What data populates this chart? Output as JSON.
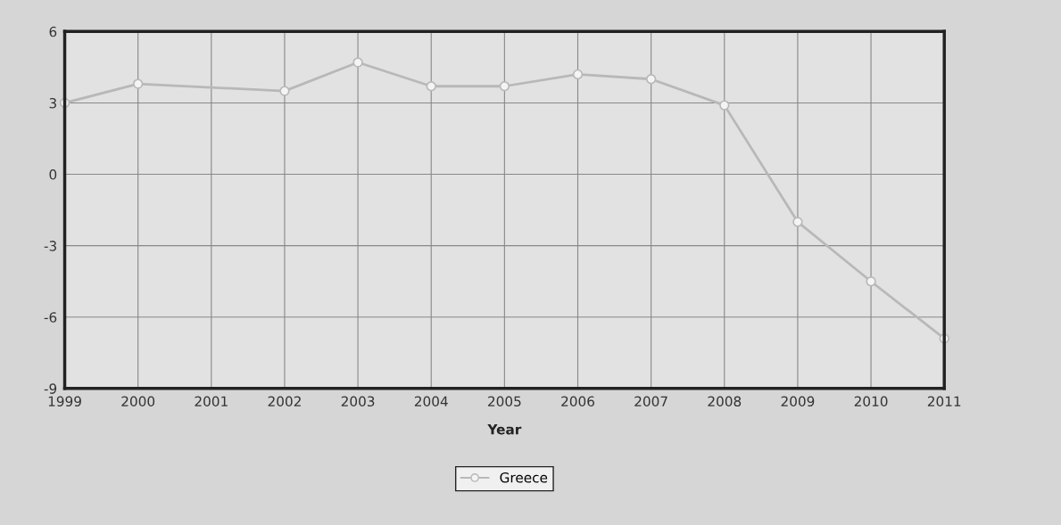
{
  "chart_data": {
    "type": "line",
    "xlabel": "Year",
    "x": [
      1999,
      2000,
      2002,
      2003,
      2004,
      2005,
      2006,
      2007,
      2008,
      2009,
      2010,
      2011
    ],
    "series": [
      {
        "name": "Greece",
        "color": "#b8b8b8",
        "values": [
          3.0,
          3.8,
          3.5,
          4.7,
          3.7,
          3.7,
          4.2,
          4.0,
          2.9,
          -2.0,
          -4.5,
          -6.9
        ]
      }
    ],
    "xlim": [
      1999,
      2011
    ],
    "xticks": [
      1999,
      2000,
      2001,
      2002,
      2003,
      2004,
      2005,
      2006,
      2007,
      2008,
      2009,
      2010,
      2011
    ],
    "ylim": [
      -9,
      6
    ],
    "yticks": [
      -9,
      -6,
      -3,
      0,
      3,
      6
    ],
    "grid": true,
    "legend": "bottom",
    "marker": "circle",
    "line_style": "solid"
  }
}
